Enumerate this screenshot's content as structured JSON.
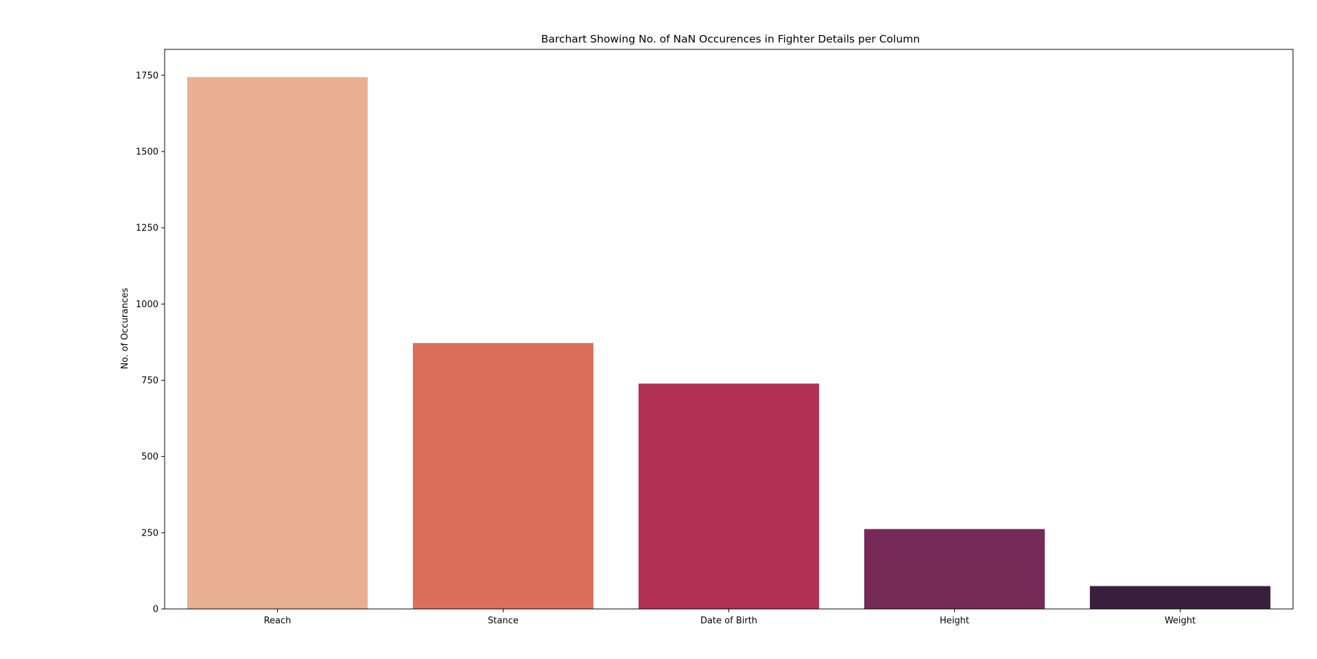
{
  "chart_data": {
    "type": "bar",
    "title": "Barchart Showing No. of NaN Occurences in Fighter Details per Column",
    "xlabel": "",
    "ylabel": "No. of Occurances",
    "categories": [
      "Reach",
      "Stance",
      "Date of Birth",
      "Height",
      "Weight"
    ],
    "values": [
      1744,
      872,
      739,
      262,
      75
    ],
    "colors": [
      "#e9af91",
      "#dc6f5b",
      "#b22f55",
      "#762a58",
      "#3a1f3c"
    ],
    "ylim": [
      0,
      1835
    ],
    "yticks": [
      0,
      250,
      500,
      750,
      1000,
      1250,
      1500,
      1750
    ],
    "grid": false,
    "legend": "none"
  }
}
